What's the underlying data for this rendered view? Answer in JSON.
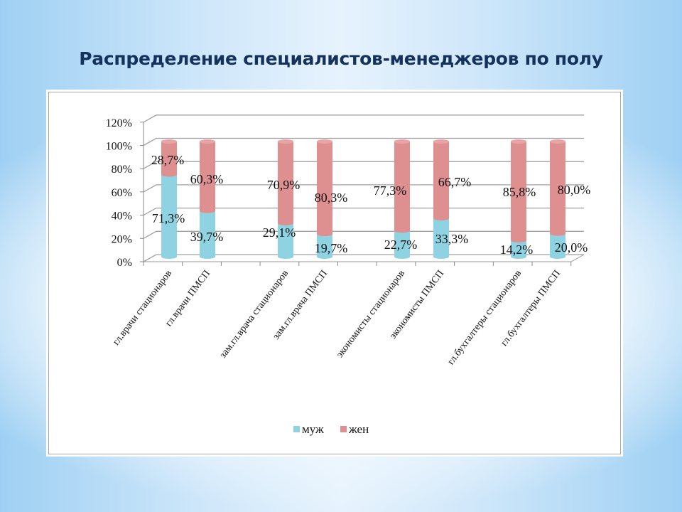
{
  "title": "Распределение специалистов-менеджеров по полу",
  "chart_data": {
    "type": "bar",
    "stacked": true,
    "style": "3d-cylinder",
    "title": "",
    "xlabel": "",
    "ylabel": "",
    "ylim": [
      0,
      120
    ],
    "yticks": [
      "0%",
      "20%",
      "40%",
      "60%",
      "80%",
      "100%",
      "120%"
    ],
    "grid": true,
    "legend_position": "bottom",
    "categories": [
      "гл.врачи стационаров",
      "гл.врачи ПМСП",
      "зам.гл.врача стационаров",
      "зам.гл.врача ПМСП",
      "экономисты стационаров",
      "экономисты ПМСП",
      "гл.бухгалтеры стационаров",
      "гл.бухгалтеры ПМСП"
    ],
    "series": [
      {
        "name": "муж",
        "color": "#8fd3e3",
        "values": [
          71.3,
          39.7,
          29.1,
          19.7,
          22.7,
          33.3,
          14.2,
          20.0
        ],
        "labels": [
          "71,3%",
          "39,7%",
          "29,1%",
          "19,7%",
          "22,7%",
          "33,3%",
          "14,2%",
          "20,0%"
        ]
      },
      {
        "name": "жен",
        "color": "#de8f8f",
        "values": [
          28.7,
          60.3,
          70.9,
          80.3,
          77.3,
          66.7,
          85.8,
          80.0
        ],
        "labels": [
          "28,7%",
          "60,3%",
          "70,9%",
          "80,3%",
          "77,3%",
          "66,7%",
          "85,8%",
          "80,0%"
        ]
      }
    ]
  }
}
